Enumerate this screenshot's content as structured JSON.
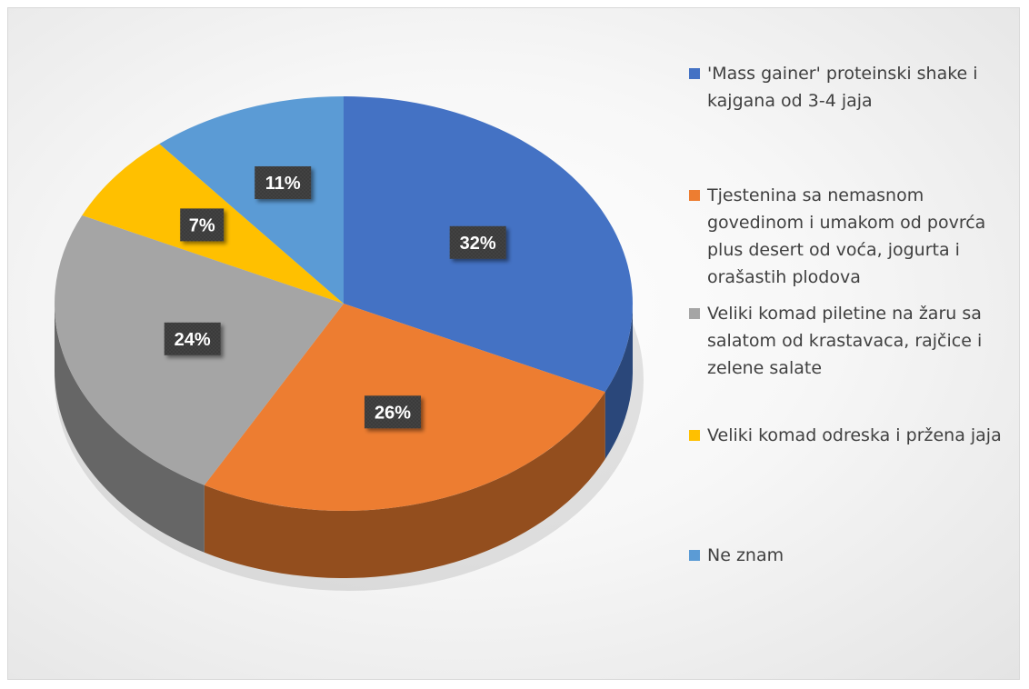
{
  "chart_data": {
    "type": "pie",
    "title": "",
    "slices": [
      {
        "label": "'Mass gainer' proteinski shake i kajgana od 3-4 jaja",
        "legend_lines": [
          "'Mass gainer' proteinski shake i",
          "kajgana od 3-4 jaja"
        ],
        "value": 32,
        "value_label": "32%",
        "color": "#4472C4"
      },
      {
        "label": "Tjestenina sa nemasnom govedinom i umakom od povrća plus desert od voća, jogurta i orašastih plodova",
        "legend_lines": [
          "Tjestenina sa nemasnom",
          "govedinom i umakom od povrća",
          "plus desert od voća, jogurta i",
          "orašastih plodova"
        ],
        "value": 26,
        "value_label": "26%",
        "color": "#ED7D31"
      },
      {
        "label": "Veliki komad piletine na žaru sa salatom od krastavaca, rajčice i zelene salate",
        "legend_lines": [
          "Veliki komad piletine na žaru sa",
          "salatom od krastavaca, rajčice i",
          "zelene salate"
        ],
        "value": 24,
        "value_label": "24%",
        "color": "#A5A5A5"
      },
      {
        "label": "Veliki komad odreska i pržena jaja",
        "legend_lines": [
          "Veliki komad odreska i pržena jaja"
        ],
        "value": 7,
        "value_label": "7%",
        "color": "#FFC000"
      },
      {
        "label": "Ne znam",
        "legend_lines": [
          "Ne znam"
        ],
        "value": 11,
        "value_label": "11%",
        "color": "#5B9BD5"
      }
    ],
    "legend_position": "right",
    "style": "3d-pie"
  }
}
